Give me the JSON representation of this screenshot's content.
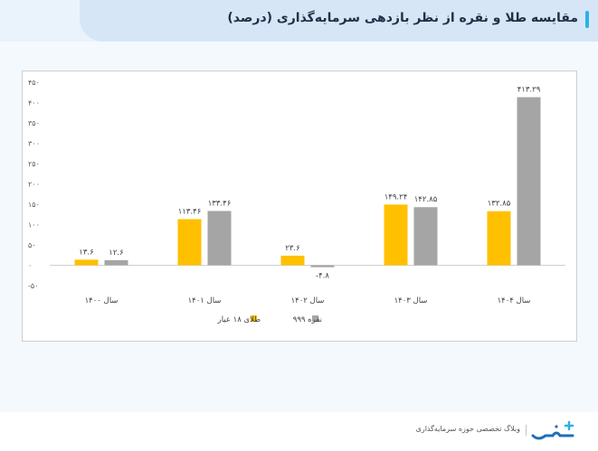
{
  "header": {
    "title": "مقایسه طلا و نقره از نظر بازدهی سرمایه‌گذاری  (درصد)"
  },
  "footer": {
    "tagline": "وبلاگ تخصصی حوزه سرمایه‌گذاری",
    "logo_text": "سرمایه"
  },
  "colors": {
    "gold": "#ffc000",
    "silver": "#a5a5a5",
    "accent": "#29b3e5"
  },
  "chart_data": {
    "type": "bar",
    "title": "",
    "xlabel": "",
    "ylabel": "",
    "categories": [
      "سال ۱۴۰۰",
      "سال ۱۴۰۱",
      "سال ۱۴۰۲",
      "سال ۱۴۰۳",
      "سال ۱۴۰۴"
    ],
    "series": [
      {
        "name": "طلای ۱۸ عیار",
        "values": [
          13.6,
          113.46,
          23.6,
          149.24,
          132.85
        ],
        "labels": [
          "۱۳.۶",
          "۱۱۳.۴۶",
          "۲۳.۶",
          "۱۴۹.۲۴",
          "۱۳۲.۸۵"
        ],
        "color": "#ffc000"
      },
      {
        "name": "نقره ۹۹۹",
        "values": [
          12.6,
          133.46,
          -4.8,
          142.85,
          413.29
        ],
        "labels": [
          "۱۲.۶",
          "۱۳۳.۴۶",
          "-۴.۸",
          "۱۴۲.۸۵",
          "۴۱۳.۲۹"
        ],
        "color": "#a5a5a5"
      }
    ],
    "ylim": [
      -50,
      450
    ],
    "yticks": [
      -50,
      0,
      50,
      100,
      150,
      200,
      250,
      300,
      350,
      400,
      450
    ],
    "ytick_labels": [
      "-۵۰",
      "۰",
      "۵۰",
      "۱۰۰",
      "۱۵۰",
      "۲۰۰",
      "۲۵۰",
      "۳۰۰",
      "۳۵۰",
      "۴۰۰",
      "۴۵۰"
    ],
    "legend_position": "bottom",
    "grid": false
  }
}
